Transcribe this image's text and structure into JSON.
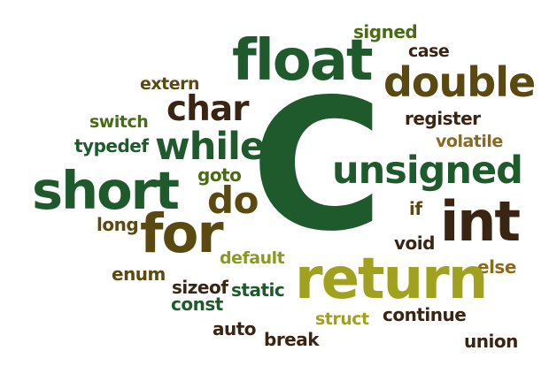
{
  "words": {
    "c": {
      "text": "C",
      "color": "#1f5a2c"
    },
    "float": {
      "text": "float",
      "color": "#1f5a2c"
    },
    "double": {
      "text": "double",
      "color": "#5a4a12"
    },
    "signed": {
      "text": "signed",
      "color": "#4a6b16"
    },
    "case": {
      "text": "case",
      "color": "#3a2412"
    },
    "extern": {
      "text": "extern",
      "color": "#5a4a12"
    },
    "char": {
      "text": "char",
      "color": "#3a2412"
    },
    "register": {
      "text": "register",
      "color": "#3a2412"
    },
    "switch": {
      "text": "switch",
      "color": "#4a6b16"
    },
    "volatile": {
      "text": "volatile",
      "color": "#8a6a1f"
    },
    "typedef": {
      "text": "typedef",
      "color": "#1f5a2c"
    },
    "while": {
      "text": "while",
      "color": "#1f5a2c"
    },
    "unsigned": {
      "text": "unsigned",
      "color": "#1f5a2c"
    },
    "short": {
      "text": "short",
      "color": "#1f5a2c"
    },
    "goto": {
      "text": "goto",
      "color": "#4a6b16"
    },
    "do": {
      "text": "do",
      "color": "#5a4a12"
    },
    "if": {
      "text": "if",
      "color": "#5a4a12"
    },
    "int": {
      "text": "int",
      "color": "#3a2412"
    },
    "long": {
      "text": "long",
      "color": "#5a4a12"
    },
    "for": {
      "text": "for",
      "color": "#5a4a12"
    },
    "void": {
      "text": "void",
      "color": "#3a2412"
    },
    "default": {
      "text": "default",
      "color": "#8a9a1f"
    },
    "else": {
      "text": "else",
      "color": "#8a6a1f"
    },
    "enum": {
      "text": "enum",
      "color": "#5a4a12"
    },
    "return": {
      "text": "return",
      "color": "#a0a21f"
    },
    "sizeof": {
      "text": "sizeof",
      "color": "#3a2412"
    },
    "static": {
      "text": "static",
      "color": "#1f5a2c"
    },
    "const": {
      "text": "const",
      "color": "#1f5a2c"
    },
    "struct": {
      "text": "struct",
      "color": "#a0a21f"
    },
    "continue": {
      "text": "continue",
      "color": "#3a2412"
    },
    "auto": {
      "text": "auto",
      "color": "#3a2412"
    },
    "break": {
      "text": "break",
      "color": "#3a2412"
    },
    "union": {
      "text": "union",
      "color": "#3a2412"
    }
  }
}
